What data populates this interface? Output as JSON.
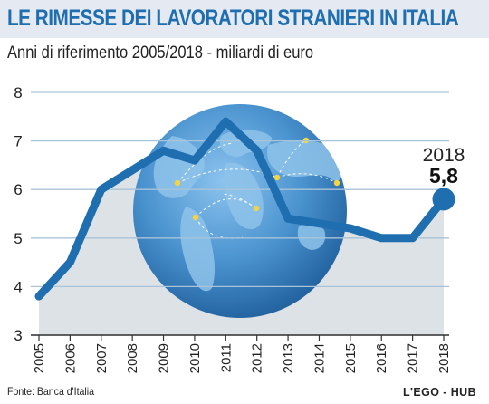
{
  "header": {
    "title": "LE RIMESSE DEI LAVORATORI STRANIERI IN ITALIA",
    "subtitle": "Anni di riferimento 2005/2018 - miliardi di euro"
  },
  "footer": {
    "source": "Fonte: Banca d'Italia",
    "credit": "L'EGO - HUB"
  },
  "chart_data": {
    "type": "line",
    "title": "LE RIMESSE DEI LAVORATORI STRANIERI IN ITALIA",
    "subtitle": "Anni di riferimento 2005/2018 - miliardi di euro",
    "xlabel": "",
    "ylabel": "",
    "x": [
      2005,
      2006,
      2007,
      2008,
      2009,
      2010,
      2011,
      2012,
      2013,
      2014,
      2015,
      2016,
      2017,
      2018
    ],
    "x_tick_labels": [
      "2005",
      "2006",
      "2007",
      "2008",
      "2009",
      "2010",
      "2011",
      "2012",
      "2013",
      "2014",
      "2015",
      "2016",
      "2017",
      "2018"
    ],
    "series": [
      {
        "values": [
          3.8,
          4.5,
          6.0,
          6.4,
          6.8,
          6.6,
          7.4,
          6.8,
          5.4,
          5.3,
          5.2,
          5.0,
          5.0,
          5.8
        ]
      }
    ],
    "ylim": [
      3,
      8
    ],
    "y_ticks": [
      3,
      4,
      5,
      6,
      7,
      8
    ],
    "grid": true,
    "highlight": {
      "year_label": "2018",
      "value_label": "5,8"
    },
    "colors": {
      "line": "#1f6fb0",
      "area": "#dde2e6",
      "grid": "#a9c3d8",
      "globe": "#4a93cf",
      "route_dot": "#f5d442"
    },
    "decoration": "globe-illustration"
  }
}
